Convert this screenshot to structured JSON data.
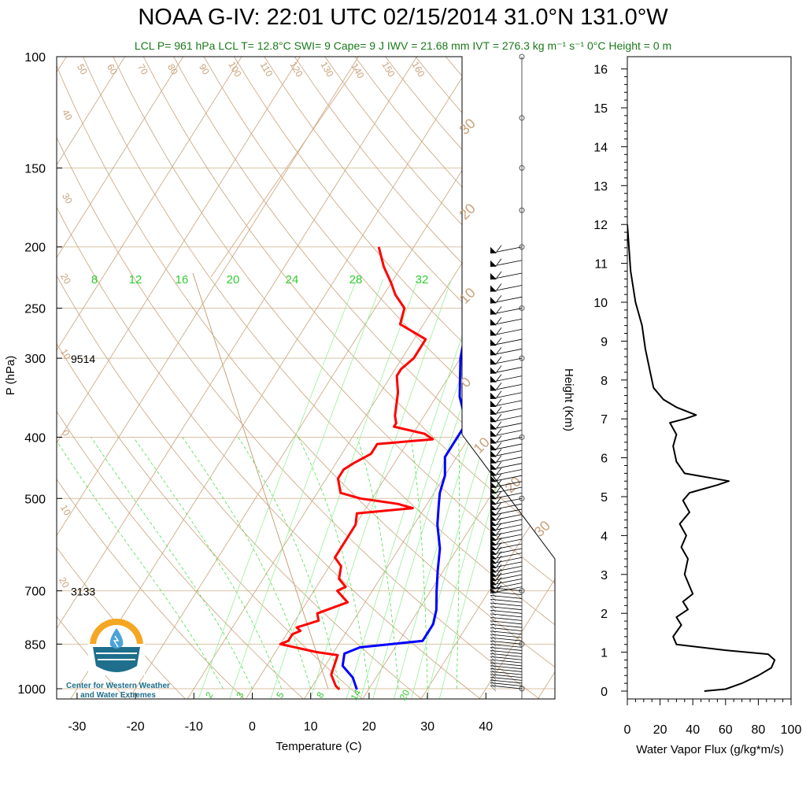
{
  "title": "NOAA G-IV: 22:01 UTC 02/15/2014  31.0°N 131.0°W",
  "subtitle": "LCL P= 961 hPa  LCL T= 12.8°C  SWI= 9  Cape= 9 J  IWV = 21.68 mm  IVT = 276.3 kg m⁻¹ s⁻¹  0°C Height = 0 m",
  "logo": {
    "line1": "Center for Western Weather",
    "line2": "and Water Extremes"
  },
  "colors": {
    "temperature": "#ff0000",
    "dewpoint": "#0000ff",
    "theta": "#c8a27a",
    "mixing_ratio": "#33dd33",
    "flux": "#000000",
    "subtitle": "#1a7a1a"
  },
  "chart_data": [
    {
      "type": "line",
      "name": "skew-t",
      "xlabel": "Temperature (C)",
      "ylabel": "P (hPa)",
      "x_ticks": [
        "-30",
        "-20",
        "-10",
        "0",
        "10",
        "20",
        "30",
        "40"
      ],
      "y_ticks": [
        "100",
        "150",
        "200",
        "250",
        "300",
        "400",
        "500",
        "700",
        "850",
        "1000"
      ],
      "height_labels": [
        {
          "p": 300,
          "text": "9514"
        },
        {
          "p": 700,
          "text": "3133"
        }
      ],
      "mixing_ratio_labels_top": [
        "8",
        "12",
        "16",
        "20",
        "24",
        "28",
        "32"
      ],
      "mixing_ratio_labels_bottom": [
        "2",
        "3",
        "5",
        "8",
        "14",
        "20"
      ],
      "theta_labels": [
        "50",
        "60",
        "70",
        "80",
        "90",
        "100",
        "110",
        "120",
        "130",
        "140",
        "150",
        "160",
        "40",
        "30",
        "20",
        "10",
        "0",
        "10",
        "20"
      ],
      "wetbulb_labels": [
        "30",
        "20",
        "10",
        "0",
        "10",
        "20",
        "30"
      ],
      "series": [
        {
          "name": "Temperature",
          "points": [
            [
              -26,
              200
            ],
            [
              -23,
              215
            ],
            [
              -20,
              228
            ],
            [
              -18,
              238
            ],
            [
              -15,
              250
            ],
            [
              -14,
              265
            ],
            [
              -8,
              280
            ],
            [
              -8,
              300
            ],
            [
              -9,
              312
            ],
            [
              -9,
              320
            ],
            [
              -7,
              340
            ],
            [
              -5,
              370
            ],
            [
              -4,
              380
            ],
            [
              -4,
              385
            ],
            [
              2,
              395
            ],
            [
              4,
              403
            ],
            [
              -5,
              410
            ],
            [
              -5,
              425
            ],
            [
              -7,
              440
            ],
            [
              -8,
              450
            ],
            [
              -8,
              465
            ],
            [
              -6,
              490
            ],
            [
              -2,
              500
            ],
            [
              5,
              510
            ],
            [
              8,
              518
            ],
            [
              -1,
              528
            ],
            [
              0,
              550
            ],
            [
              0,
              580
            ],
            [
              0,
              620
            ],
            [
              2,
              640
            ],
            [
              3,
              670
            ],
            [
              5,
              690
            ],
            [
              4,
              700
            ],
            [
              6,
              720
            ],
            [
              7,
              730
            ],
            [
              3,
              760
            ],
            [
              4,
              780
            ],
            [
              1,
              800
            ],
            [
              2,
              810
            ],
            [
              1,
              820
            ],
            [
              1,
              840
            ],
            [
              0,
              850
            ],
            [
              7,
              875
            ],
            [
              11,
              885
            ],
            [
              12,
              950
            ],
            [
              14,
              990
            ],
            [
              15,
              1003
            ]
          ]
        },
        {
          "name": "Dew point",
          "points": [
            [
              -8,
              200
            ],
            [
              -6,
              230
            ],
            [
              -3,
              260
            ],
            [
              0,
              300
            ],
            [
              4,
              345
            ],
            [
              8,
              380
            ],
            [
              8,
              395
            ],
            [
              8,
              410
            ],
            [
              8,
              430
            ],
            [
              10,
              460
            ],
            [
              11,
              490
            ],
            [
              12,
              510
            ],
            [
              14,
              550
            ],
            [
              17,
              600
            ],
            [
              19,
              650
            ],
            [
              21,
              700
            ],
            [
              23,
              750
            ],
            [
              24,
              790
            ],
            [
              24,
              820
            ],
            [
              24,
              840
            ],
            [
              14,
              860
            ],
            [
              12,
              880
            ],
            [
              13,
              920
            ],
            [
              16,
              960
            ],
            [
              18,
              1003
            ]
          ]
        }
      ]
    },
    {
      "type": "line",
      "name": "water-vapor-flux",
      "xlabel": "Water Vapor Flux (g/kg*m/s)",
      "ylabel": "Height (Km)",
      "xlim": [
        0,
        100
      ],
      "ylim": [
        0,
        16
      ],
      "x_ticks": [
        "0",
        "20",
        "40",
        "60",
        "80",
        "100"
      ],
      "y_ticks": [
        "0",
        "1",
        "2",
        "3",
        "4",
        "5",
        "6",
        "7",
        "8",
        "9",
        "10",
        "11",
        "12",
        "13",
        "14",
        "15",
        "16"
      ],
      "points": [
        [
          47,
          0.0
        ],
        [
          60,
          0.05
        ],
        [
          70,
          0.2
        ],
        [
          80,
          0.4
        ],
        [
          88,
          0.6
        ],
        [
          90,
          0.8
        ],
        [
          86,
          0.95
        ],
        [
          60,
          1.05
        ],
        [
          30,
          1.2
        ],
        [
          28,
          1.4
        ],
        [
          33,
          1.7
        ],
        [
          30,
          1.9
        ],
        [
          37,
          2.1
        ],
        [
          34,
          2.3
        ],
        [
          40,
          2.5
        ],
        [
          38,
          2.7
        ],
        [
          35,
          3.0
        ],
        [
          37,
          3.4
        ],
        [
          33,
          3.7
        ],
        [
          36,
          4.0
        ],
        [
          32,
          4.3
        ],
        [
          38,
          4.6
        ],
        [
          34,
          4.9
        ],
        [
          38,
          5.1
        ],
        [
          55,
          5.3
        ],
        [
          62,
          5.4
        ],
        [
          35,
          5.6
        ],
        [
          30,
          5.9
        ],
        [
          28,
          6.3
        ],
        [
          30,
          6.6
        ],
        [
          26,
          6.9
        ],
        [
          35,
          7.0
        ],
        [
          42,
          7.1
        ],
        [
          30,
          7.3
        ],
        [
          22,
          7.5
        ],
        [
          16,
          7.8
        ],
        [
          14,
          8.2
        ],
        [
          11,
          8.8
        ],
        [
          9,
          9.4
        ],
        [
          5,
          10.0
        ],
        [
          2,
          10.8
        ],
        [
          0,
          12.0
        ]
      ]
    }
  ]
}
